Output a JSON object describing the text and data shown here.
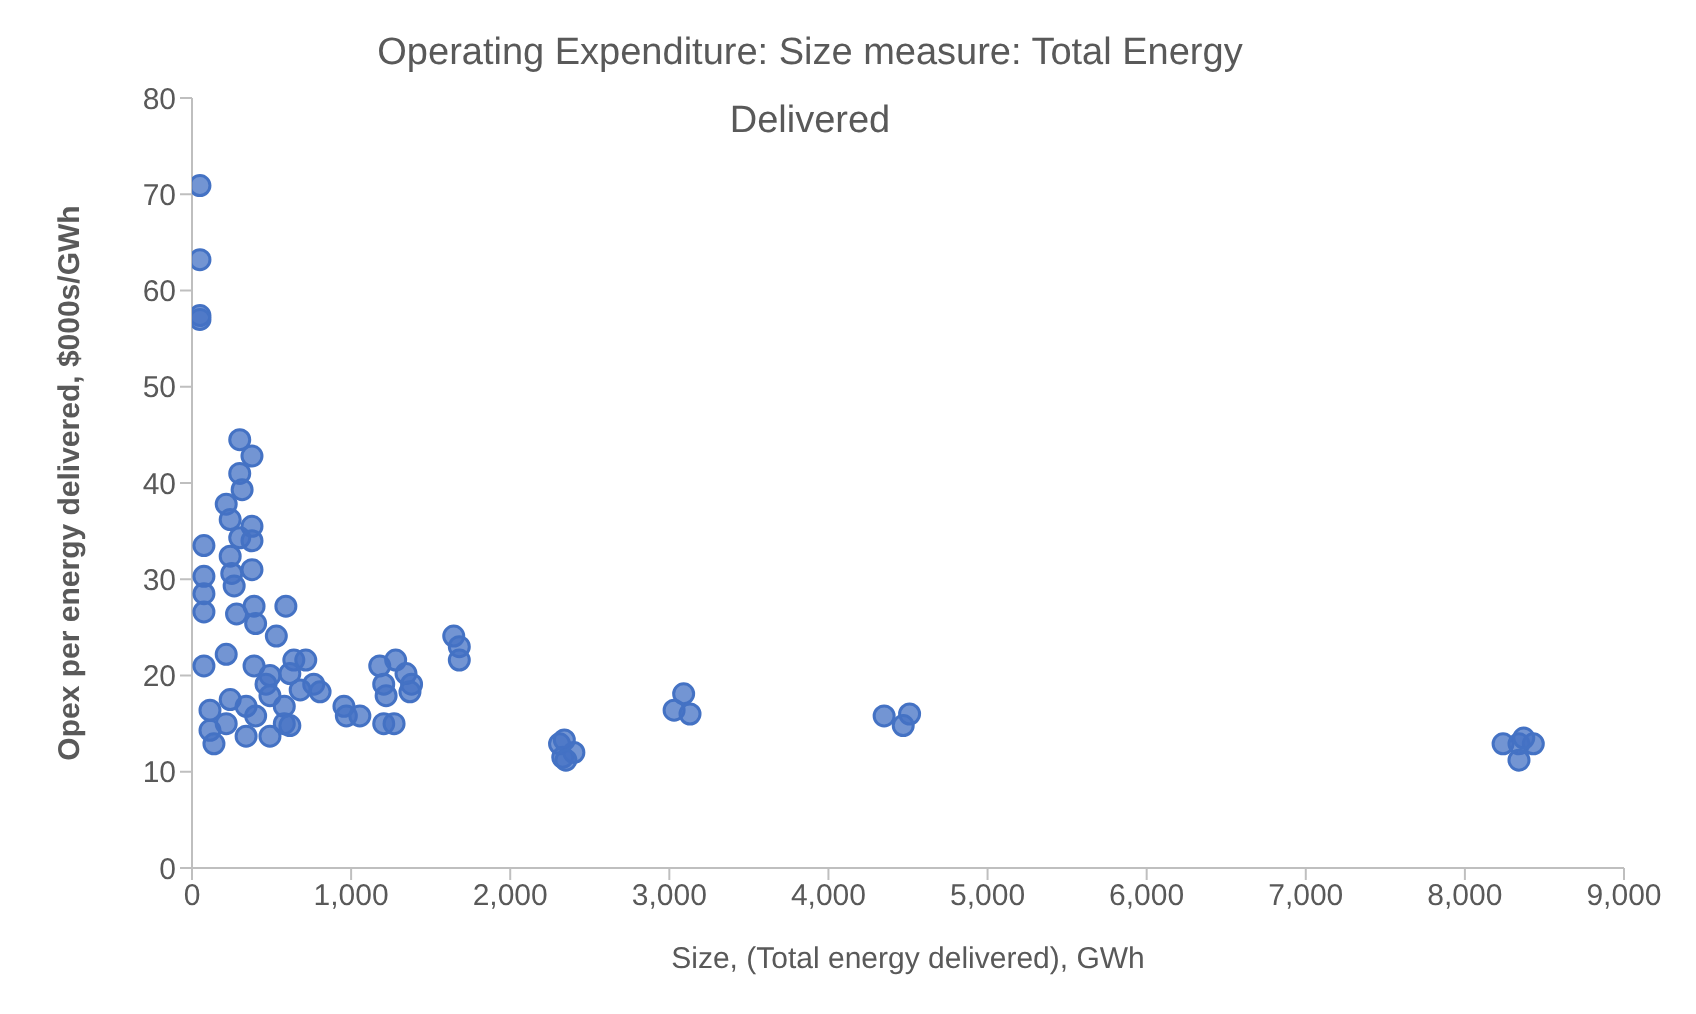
{
  "chart_data": {
    "type": "scatter",
    "title": "Operating Expenditure: Size measure: Total Energy Delivered",
    "xlabel": "Size, (Total energy delivered), GWh",
    "ylabel": "Opex per energy delivered, $000s/GWh",
    "x": [
      50,
      50,
      50,
      50,
      300,
      377,
      300,
      315,
      215,
      240,
      377,
      300,
      377,
      75,
      240,
      377,
      250,
      75,
      265,
      75,
      390,
      590,
      75,
      280,
      400,
      530,
      1645,
      1680,
      1680,
      75,
      215,
      390,
      640,
      715,
      490,
      615,
      765,
      805,
      1180,
      1280,
      1345,
      1380,
      1370,
      1220,
      1205,
      955,
      970,
      1055,
      1205,
      1270,
      113,
      113,
      138,
      240,
      215,
      340,
      340,
      490,
      580,
      580,
      615,
      465,
      490,
      680,
      400,
      2310,
      2330,
      2400,
      2340,
      2350,
      3090,
      3030,
      3130,
      4350,
      4510,
      4470,
      8240,
      8340,
      8430,
      8340,
      8370
    ],
    "series": [
      {
        "color": "#4472c4",
        "values": [
          70.9,
          63.2,
          57.4,
          57,
          44.5,
          42.8,
          41,
          39.3,
          37.8,
          36.2,
          35.5,
          34.3,
          34,
          33.5,
          32.4,
          31,
          30.6,
          30.3,
          29.3,
          28.5,
          27.2,
          27.2,
          26.6,
          26.4,
          25.4,
          24.1,
          24.1,
          23,
          21.6,
          21,
          22.2,
          21,
          21.6,
          21.6,
          20,
          20.2,
          19.1,
          18.3,
          21,
          21.6,
          20.2,
          19.1,
          18.3,
          17.9,
          19.1,
          16.8,
          15.8,
          15.8,
          15,
          15,
          16.4,
          14.3,
          12.9,
          17.5,
          15,
          16.8,
          13.7,
          13.7,
          16.8,
          15,
          14.8,
          19.1,
          17.9,
          18.5,
          15.8,
          12.9,
          11.5,
          12,
          13.3,
          11.2,
          18.1,
          16.4,
          16,
          15.8,
          16,
          14.8,
          12.9,
          12.9,
          12.9,
          11.2,
          13.5
        ]
      }
    ],
    "xlim": [
      0,
      9000
    ],
    "xticks": [
      {
        "value": 0,
        "label": "0"
      },
      {
        "value": 1000,
        "label": "1,000"
      },
      {
        "value": 2000,
        "label": "2,000"
      },
      {
        "value": 3000,
        "label": "3,000"
      },
      {
        "value": 4000,
        "label": "4,000"
      },
      {
        "value": 5000,
        "label": "5,000"
      },
      {
        "value": 6000,
        "label": "6,000"
      },
      {
        "value": 7000,
        "label": "7,000"
      },
      {
        "value": 8000,
        "label": "8,000"
      },
      {
        "value": 9000,
        "label": "9,000"
      }
    ],
    "ylim": [
      0,
      80
    ],
    "yticks": [
      0,
      10,
      20,
      30,
      40,
      50,
      60,
      70,
      80
    ],
    "marker": "circle"
  }
}
